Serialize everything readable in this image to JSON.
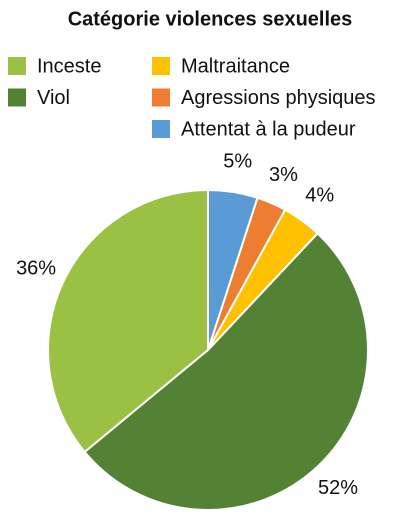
{
  "chart_data": {
    "type": "pie",
    "title": "Catégorie violences sexuelles",
    "categories": [
      "Inceste",
      "Viol",
      "Maltraitance",
      "Agressions physiques",
      "Attentat à la pudeur"
    ],
    "values": [
      36,
      52,
      4,
      3,
      5
    ],
    "value_labels": [
      "36%",
      "52%",
      "4%",
      "3%",
      "5%"
    ],
    "colors": [
      "#9bc144",
      "#548235",
      "#ffc000",
      "#ed7d31",
      "#5b9bd5"
    ]
  }
}
